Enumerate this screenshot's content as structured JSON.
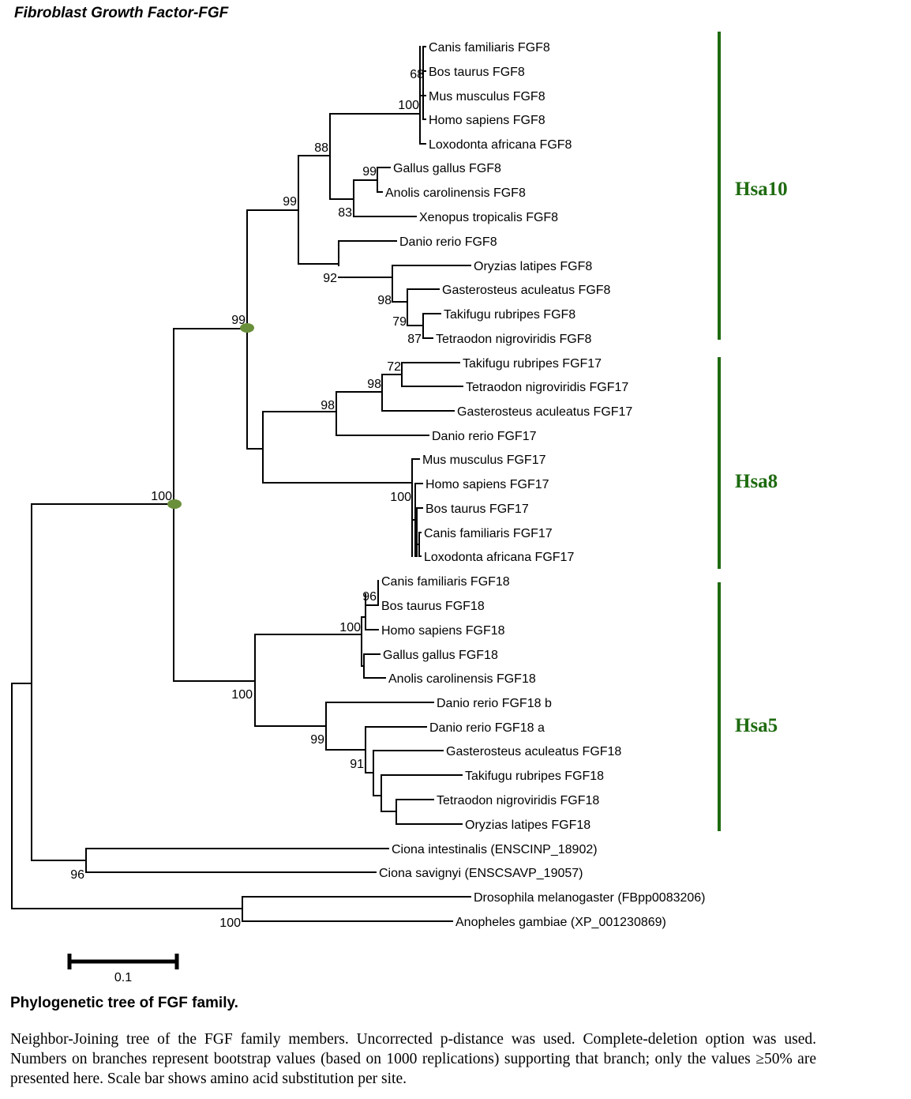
{
  "title": "Fibroblast Growth Factor-FGF",
  "caption_title": "Phylogenetic tree of FGF family.",
  "caption_text": "Neighbor-Joining tree of the  FGF family members. Uncorrected p-distance was used. Complete-deletion option was used. Numbers on branches represent bootstrap values (based on 1000 replications) supporting that branch; only the values ≥50% are presented here. Scale bar shows amino acid substitution per site.",
  "scale_bar_label": "0.1",
  "colors": {
    "clade": "#1e6b10",
    "node_marker": "#6a8f3a",
    "branch": "#000000"
  },
  "leaves": [
    "Canis familiaris FGF8",
    "Bos taurus FGF8",
    "Mus musculus FGF8",
    "Homo sapiens FGF8",
    "Loxodonta africana FGF8",
    "Gallus gallus FGF8",
    "Anolis carolinensis FGF8",
    "Xenopus tropicalis FGF8",
    "Danio rerio FGF8",
    "Oryzias latipes FGF8",
    "Gasterosteus aculeatus FGF8",
    "Takifugu rubripes FGF8",
    "Tetraodon nigroviridis FGF8",
    "Takifugu rubripes FGF17",
    "Tetraodon nigroviridis FGF17",
    "Gasterosteus aculeatus FGF17",
    "Danio rerio FGF17",
    "Mus musculus FGF17",
    "Homo sapiens FGF17",
    "Bos taurus FGF17",
    "Canis familiaris FGF17",
    "Loxodonta africana FGF17",
    "Canis familiaris FGF18",
    "Bos taurus FGF18",
    "Homo sapiens FGF18",
    "Gallus gallus FGF18",
    "Anolis carolinensis FGF18",
    "Danio rerio FGF18 b",
    "Danio rerio FGF18 a",
    "Gasterosteus aculeatus FGF18",
    "Takifugu rubripes FGF18",
    "Tetraodon nigroviridis FGF18",
    "Oryzias latipes FGF18",
    "Ciona intestinalis (ENSCINP_18902)",
    "Ciona savignyi (ENSCSAVP_19057)",
    "Drosophila melanogaster (FBpp0083206)",
    "Anopheles gambiae (XP_001230869)"
  ],
  "bootstraps": [
    "68",
    "100",
    "88",
    "99",
    "83",
    "99",
    "92",
    "98",
    "79",
    "87",
    "99",
    "72",
    "98",
    "98",
    "100",
    "100",
    "96",
    "100",
    "100",
    "99",
    "91",
    "96",
    "100"
  ],
  "clades": [
    {
      "name": "Hsa10"
    },
    {
      "name": "Hsa8"
    },
    {
      "name": "Hsa5"
    }
  ]
}
